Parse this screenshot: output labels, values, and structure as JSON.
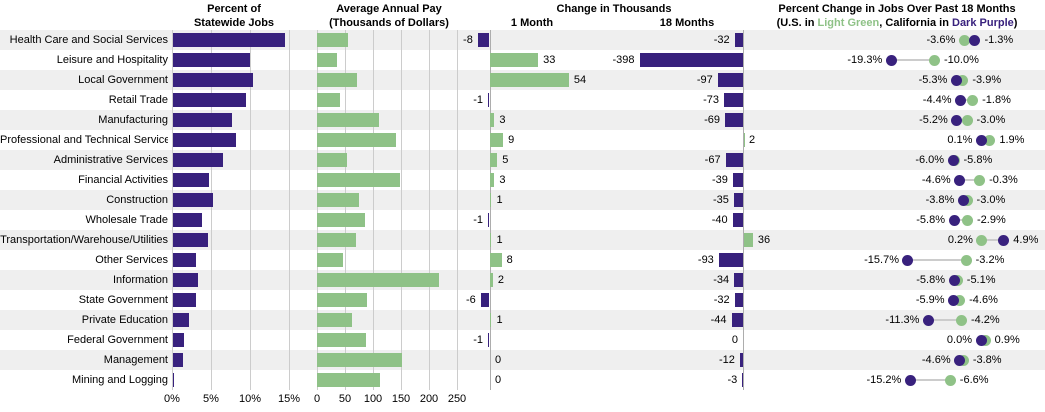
{
  "header": {
    "p1_line1": "Percent of",
    "p1_line2": "Statewide Jobs",
    "p2_line1": "Average Annual Pay",
    "p2_line2": "(Thousands of Dollars)",
    "p3_title": "Change in Thousands",
    "p3_col1": "1 Month",
    "p3_col2": "18 Months",
    "p4_line1": "Percent Change in Jobs Over Past 18 Months",
    "p4_line2_parts": [
      {
        "text": "(U.S. in ",
        "color": "text"
      },
      {
        "text": "Light Green",
        "color": "light_green"
      },
      {
        "text": ", California in ",
        "color": "text"
      },
      {
        "text": "Dark Purple",
        "color": "dark_purple"
      },
      {
        "text": ")",
        "color": "text"
      }
    ]
  },
  "colors": {
    "dark_purple": "#38217D",
    "light_green": "#8FC287",
    "row_band": "#EFEFEF",
    "gridline": "#CCCCCC",
    "axis_line": "#ADADAD",
    "connector": "#CCCCCC",
    "text": "#000000"
  },
  "chart_data": {
    "categories": [
      "Health Care and Social Services",
      "Leisure and Hospitality",
      "Local Government",
      "Retail Trade",
      "Manufacturing",
      "Professional and Technical Services",
      "Administrative Services",
      "Financial Activities",
      "Construction",
      "Wholesale Trade",
      "Transportation/Warehouse/Utilities",
      "Other Services",
      "Information",
      "State Government",
      "Private Education",
      "Federal Government",
      "Management",
      "Mining and Logging"
    ],
    "charts": [
      {
        "id": "statewide_jobs",
        "type": "bar",
        "title": "Percent of Statewide Jobs",
        "unit": "%",
        "xlim": [
          0,
          15
        ],
        "ticks": [
          {
            "v": 0,
            "label": "0%"
          },
          {
            "v": 5,
            "label": "5%"
          },
          {
            "v": 10,
            "label": "10%"
          },
          {
            "v": 15,
            "label": "15%"
          }
        ],
        "values": [
          14.4,
          9.9,
          10.3,
          9.4,
          7.6,
          8.1,
          6.5,
          4.7,
          5.2,
          3.8,
          4.5,
          3.0,
          3.3,
          3.0,
          2.1,
          1.5,
          1.4,
          0.1
        ]
      },
      {
        "id": "average_annual_pay",
        "type": "bar",
        "title": "Average Annual Pay (Thousands of Dollars)",
        "unit": "thousands of dollars",
        "xlim": [
          0,
          250
        ],
        "ticks": [
          {
            "v": 0,
            "label": "0"
          },
          {
            "v": 50,
            "label": "50"
          },
          {
            "v": 100,
            "label": "100"
          },
          {
            "v": 150,
            "label": "150"
          },
          {
            "v": 200,
            "label": "200"
          },
          {
            "v": 250,
            "label": "250"
          }
        ],
        "values": [
          56,
          35,
          72,
          41,
          110,
          141,
          53,
          149,
          75,
          86,
          69,
          46,
          218,
          90,
          62,
          88,
          151,
          112
        ]
      },
      {
        "id": "change_in_thousands",
        "type": "bar",
        "title": "Change in Thousands",
        "unit": "thousands of jobs",
        "labels_shown": true,
        "series": [
          {
            "name": "1 Month",
            "values": [
              -8,
              33,
              54,
              -1,
              3,
              9,
              5,
              3,
              1,
              -1,
              1,
              8,
              2,
              -6,
              1,
              -1,
              0,
              0
            ]
          },
          {
            "name": "18 Months",
            "values": [
              -32,
              -398,
              -97,
              -73,
              -69,
              2,
              -67,
              -39,
              -35,
              -40,
              36,
              -93,
              -34,
              -32,
              -44,
              0,
              -12,
              -3
            ]
          }
        ]
      },
      {
        "id": "pct_change_jobs_18_months",
        "type": "scatter",
        "title": "Percent Change in Jobs Over Past 18 Months",
        "unit": "%",
        "legend": [
          {
            "name": "U.S.",
            "color": "light_green"
          },
          {
            "name": "California",
            "color": "dark_purple"
          }
        ],
        "series": [
          {
            "name": "U.S.",
            "values": [
              -3.6,
              -10.0,
              -3.9,
              -1.8,
              -3.0,
              1.9,
              -5.8,
              -0.3,
              -3.0,
              -2.9,
              0.2,
              -3.2,
              -5.1,
              -4.6,
              -4.2,
              0.9,
              -3.8,
              -6.6
            ]
          },
          {
            "name": "California",
            "values": [
              -1.3,
              -19.3,
              -5.3,
              -4.4,
              -5.2,
              0.1,
              -6.0,
              -4.6,
              -3.8,
              -5.8,
              4.9,
              -15.7,
              -5.8,
              -5.9,
              -11.3,
              0.0,
              -4.6,
              -15.2
            ]
          }
        ]
      }
    ]
  }
}
